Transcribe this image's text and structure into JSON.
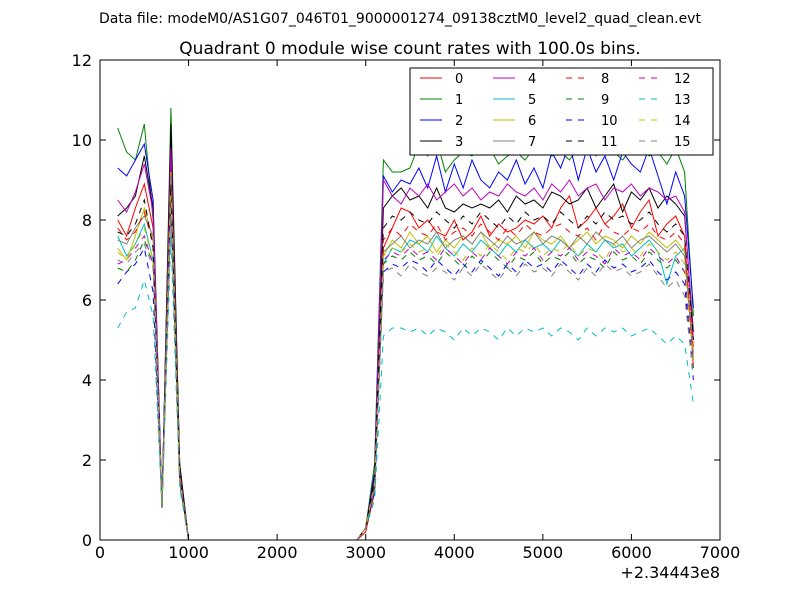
{
  "chart_data": {
    "type": "line",
    "suptitle": "Data file: modeM0/AS1G07_046T01_9000001274_09138cztM0_level2_quad_clean.evt",
    "title": "Quadrant 0 module wise count rates with 100.0s bins.",
    "xlabel": "",
    "ylabel": "",
    "x_offset_label": "+2.34443e8",
    "xlim": [
      0,
      7000
    ],
    "ylim": [
      0,
      12
    ],
    "xticks": [
      "0",
      "1000",
      "2000",
      "3000",
      "4000",
      "5000",
      "6000",
      "7000"
    ],
    "yticks": [
      "0",
      "2",
      "4",
      "6",
      "8",
      "10",
      "12"
    ],
    "grid": false,
    "legend": {
      "placement": "top-right",
      "columns": 4
    },
    "x": [
      200,
      300,
      400,
      500,
      600,
      700,
      800,
      900,
      1000,
      1100,
      1200,
      1300,
      1400,
      1500,
      1600,
      1700,
      1800,
      1900,
      2000,
      2100,
      2200,
      2300,
      2400,
      2500,
      2600,
      2700,
      2800,
      2900,
      3000,
      3100,
      3200,
      3300,
      3400,
      3500,
      3600,
      3700,
      3800,
      3900,
      4000,
      4100,
      4200,
      4300,
      4400,
      4500,
      4600,
      4700,
      4800,
      4900,
      5000,
      5100,
      5200,
      5300,
      5400,
      5500,
      5600,
      5700,
      5800,
      5900,
      6000,
      6100,
      6200,
      6300,
      6400,
      6500,
      6600,
      6700
    ],
    "series": [
      {
        "name": "0",
        "color": "#ff0000",
        "dash": false,
        "values": [
          8.0,
          7.6,
          8.3,
          8.9,
          7.8,
          0.8,
          9.5,
          1.5,
          0,
          0,
          0,
          0,
          0,
          0,
          0,
          0,
          0,
          0,
          0,
          0,
          0,
          0,
          0,
          0,
          0,
          0,
          0,
          0,
          0.2,
          1.2,
          7.3,
          7.8,
          8.3,
          8.2,
          7.8,
          8.0,
          7.7,
          7.6,
          8.0,
          7.5,
          7.7,
          8.1,
          7.6,
          7.9,
          7.7,
          7.8,
          8.0,
          7.9,
          8.1,
          7.8,
          8.3,
          8.6,
          7.8,
          8.0,
          8.3,
          7.9,
          8.1,
          8.4,
          7.8,
          8.2,
          8.5,
          7.6,
          7.9,
          8.1,
          7.6,
          4.3
        ]
      },
      {
        "name": "1",
        "color": "#008000",
        "dash": false,
        "values": [
          10.3,
          9.7,
          9.5,
          10.4,
          8.0,
          0.8,
          10.8,
          1.9,
          0,
          0,
          0,
          0,
          0,
          0,
          0,
          0,
          0,
          0,
          0,
          0,
          0,
          0,
          0,
          0,
          0,
          0,
          0,
          0,
          0.3,
          1.9,
          9.5,
          9.2,
          9.2,
          9.3,
          9.9,
          9.6,
          10.0,
          9.2,
          9.5,
          9.7,
          9.6,
          9.9,
          9.8,
          9.4,
          9.6,
          9.7,
          9.5,
          9.8,
          9.9,
          9.6,
          9.7,
          9.5,
          9.8,
          9.9,
          9.6,
          10.0,
          9.7,
          9.5,
          9.8,
          9.9,
          9.6,
          9.7,
          9.4,
          9.8,
          9.2,
          5.6
        ]
      },
      {
        "name": "2",
        "color": "#0000ff",
        "dash": false,
        "values": [
          9.3,
          9.1,
          9.5,
          9.9,
          8.5,
          0.9,
          10.2,
          1.8,
          0,
          0,
          0,
          0,
          0,
          0,
          0,
          0,
          0,
          0,
          0,
          0,
          0,
          0,
          0,
          0,
          0,
          0,
          0,
          0,
          0.3,
          1.7,
          9.1,
          8.7,
          9.0,
          8.9,
          9.3,
          8.8,
          9.6,
          8.7,
          9.4,
          8.8,
          9.5,
          9.0,
          8.8,
          9.2,
          9.0,
          9.5,
          8.9,
          9.3,
          8.8,
          9.7,
          9.3,
          9.9,
          9.0,
          9.8,
          9.2,
          9.6,
          9.0,
          9.7,
          9.4,
          9.2,
          9.8,
          9.1,
          8.4,
          9.2,
          8.6,
          5.8
        ]
      },
      {
        "name": "3",
        "color": "#000000",
        "dash": false,
        "values": [
          8.1,
          8.3,
          8.6,
          9.6,
          8.3,
          0.8,
          10.4,
          1.9,
          0,
          0,
          0,
          0,
          0,
          0,
          0,
          0,
          0,
          0,
          0,
          0,
          0,
          0,
          0,
          0,
          0,
          0,
          0,
          0,
          0.3,
          1.6,
          8.3,
          8.6,
          8.8,
          8.5,
          8.6,
          8.3,
          8.8,
          8.3,
          8.2,
          8.4,
          8.3,
          8.4,
          8.3,
          8.5,
          8.2,
          8.6,
          8.4,
          8.5,
          8.3,
          8.7,
          8.6,
          8.4,
          8.5,
          8.8,
          8.3,
          8.6,
          8.9,
          8.2,
          8.7,
          8.5,
          8.8,
          8.3,
          8.6,
          8.4,
          8.1,
          5.2
        ]
      },
      {
        "name": "4",
        "color": "#bf00bf",
        "dash": false,
        "values": [
          8.5,
          8.2,
          8.7,
          9.4,
          8.2,
          0.8,
          9.8,
          1.7,
          0,
          0,
          0,
          0,
          0,
          0,
          0,
          0,
          0,
          0,
          0,
          0,
          0,
          0,
          0,
          0,
          0,
          0,
          0,
          0,
          0.3,
          1.5,
          9.0,
          8.6,
          8.4,
          8.8,
          8.6,
          8.9,
          8.5,
          8.7,
          8.9,
          8.6,
          8.8,
          8.5,
          8.7,
          8.6,
          8.9,
          8.7,
          8.6,
          8.8,
          8.5,
          8.9,
          8.7,
          9.0,
          8.6,
          8.8,
          8.9,
          8.5,
          8.8,
          8.7,
          8.9,
          8.6,
          8.8,
          8.7,
          8.5,
          8.6,
          8.2,
          5.0
        ]
      },
      {
        "name": "5",
        "color": "#00bfbf",
        "dash": false,
        "values": [
          7.6,
          7.1,
          7.4,
          7.9,
          7.0,
          0.8,
          8.9,
          1.6,
          0,
          0,
          0,
          0,
          0,
          0,
          0,
          0,
          0,
          0,
          0,
          0,
          0,
          0,
          0,
          0,
          0,
          0,
          0,
          0,
          0.3,
          1.3,
          6.9,
          7.3,
          7.2,
          7.5,
          7.4,
          7.2,
          7.6,
          7.3,
          7.1,
          7.4,
          7.2,
          7.5,
          7.3,
          7.1,
          7.4,
          7.2,
          7.5,
          7.3,
          7.4,
          7.2,
          7.5,
          7.3,
          7.1,
          7.4,
          7.2,
          7.5,
          7.3,
          7.4,
          7.1,
          7.3,
          7.5,
          7.2,
          6.4,
          7.1,
          7.3,
          4.5
        ]
      },
      {
        "name": "6",
        "color": "#bfbf00",
        "dash": false,
        "values": [
          7.3,
          7.0,
          7.6,
          8.3,
          7.5,
          0.8,
          9.2,
          1.6,
          0,
          0,
          0,
          0,
          0,
          0,
          0,
          0,
          0,
          0,
          0,
          0,
          0,
          0,
          0,
          0,
          0,
          0,
          0,
          0,
          0.3,
          1.4,
          7.1,
          7.5,
          7.3,
          7.7,
          7.4,
          7.6,
          7.2,
          7.5,
          7.3,
          7.6,
          7.4,
          7.7,
          7.3,
          7.5,
          7.4,
          7.6,
          7.3,
          7.7,
          7.5,
          7.4,
          7.6,
          7.3,
          7.5,
          7.7,
          7.4,
          7.6,
          7.5,
          7.3,
          7.6,
          7.4,
          7.7,
          7.5,
          7.3,
          7.5,
          7.2,
          4.7
        ]
      },
      {
        "name": "7",
        "color": "#808080",
        "dash": false,
        "values": [
          7.5,
          7.4,
          7.8,
          8.1,
          7.6,
          0.8,
          9.1,
          1.6,
          0,
          0,
          0,
          0,
          0,
          0,
          0,
          0,
          0,
          0,
          0,
          0,
          0,
          0,
          0,
          0,
          0,
          0,
          0,
          0,
          0.3,
          1.4,
          7.2,
          7.4,
          7.6,
          7.3,
          7.5,
          7.4,
          7.7,
          7.3,
          7.5,
          7.6,
          7.4,
          7.7,
          7.5,
          7.3,
          7.6,
          7.4,
          7.5,
          7.7,
          7.4,
          7.6,
          7.5,
          7.3,
          7.6,
          7.4,
          7.7,
          7.5,
          7.4,
          7.6,
          7.3,
          7.5,
          7.6,
          7.4,
          7.2,
          7.4,
          7.1,
          4.6
        ]
      },
      {
        "name": "8",
        "color": "#ff0000",
        "dash": true,
        "values": [
          7.8,
          7.5,
          7.7,
          8.2,
          7.4,
          0.8,
          8.8,
          1.6,
          0,
          0,
          0,
          0,
          0,
          0,
          0,
          0,
          0,
          0,
          0,
          0,
          0,
          0,
          0,
          0,
          0,
          0,
          0,
          0,
          0.3,
          1.4,
          7.5,
          7.8,
          7.6,
          7.9,
          7.7,
          7.6,
          7.9,
          7.5,
          7.7,
          7.8,
          7.6,
          7.9,
          7.7,
          7.5,
          7.8,
          7.6,
          7.9,
          7.7,
          7.6,
          7.8,
          7.9,
          7.7,
          7.6,
          7.8,
          7.5,
          7.9,
          7.7,
          7.6,
          7.8,
          7.7,
          7.9,
          7.6,
          7.5,
          7.7,
          7.4,
          4.8
        ]
      },
      {
        "name": "9",
        "color": "#008000",
        "dash": true,
        "values": [
          6.8,
          6.7,
          7.0,
          7.5,
          6.9,
          0.8,
          8.4,
          1.5,
          0,
          0,
          0,
          0,
          0,
          0,
          0,
          0,
          0,
          0,
          0,
          0,
          0,
          0,
          0,
          0,
          0,
          0,
          0,
          0,
          0.3,
          1.3,
          6.9,
          7.1,
          7.0,
          7.2,
          7.0,
          7.1,
          6.9,
          7.2,
          7.0,
          6.8,
          7.1,
          6.9,
          7.2,
          7.0,
          6.8,
          7.1,
          7.0,
          7.2,
          6.9,
          7.1,
          7.0,
          7.2,
          6.9,
          7.1,
          7.0,
          6.8,
          7.2,
          7.0,
          7.1,
          6.9,
          7.2,
          7.0,
          6.8,
          7.0,
          6.7,
          4.3
        ]
      },
      {
        "name": "10",
        "color": "#0000ff",
        "dash": true,
        "values": [
          6.4,
          6.7,
          6.9,
          7.3,
          6.2,
          0.8,
          8.3,
          1.4,
          0,
          0,
          0,
          0,
          0,
          0,
          0,
          0,
          0,
          0,
          0,
          0,
          0,
          0,
          0,
          0,
          0,
          0,
          0,
          0,
          0.3,
          1.2,
          6.7,
          6.9,
          6.8,
          7.0,
          6.9,
          6.7,
          7.0,
          6.8,
          6.6,
          6.9,
          6.7,
          7.0,
          6.8,
          6.6,
          6.9,
          6.7,
          7.0,
          6.8,
          6.9,
          6.7,
          7.0,
          6.8,
          6.6,
          6.9,
          6.7,
          7.0,
          6.8,
          6.9,
          6.7,
          6.8,
          7.0,
          6.7,
          6.5,
          6.7,
          6.4,
          4.0
        ]
      },
      {
        "name": "11",
        "color": "#000000",
        "dash": true,
        "values": [
          7.7,
          7.6,
          7.9,
          8.5,
          7.3,
          0.8,
          8.9,
          1.6,
          0,
          0,
          0,
          0,
          0,
          0,
          0,
          0,
          0,
          0,
          0,
          0,
          0,
          0,
          0,
          0,
          0,
          0,
          0,
          0,
          0.3,
          1.5,
          7.8,
          8.1,
          8.0,
          8.2,
          8.0,
          7.9,
          8.2,
          8.0,
          7.8,
          8.1,
          7.9,
          8.2,
          8.0,
          7.8,
          8.1,
          7.9,
          8.2,
          8.0,
          8.1,
          7.9,
          8.2,
          8.0,
          7.8,
          8.1,
          7.9,
          8.2,
          8.0,
          8.1,
          7.9,
          8.0,
          8.2,
          7.9,
          7.7,
          7.9,
          7.6,
          5.0
        ]
      },
      {
        "name": "12",
        "color": "#bf00bf",
        "dash": true,
        "values": [
          6.9,
          7.0,
          7.3,
          7.6,
          6.9,
          0.8,
          8.5,
          1.5,
          0,
          0,
          0,
          0,
          0,
          0,
          0,
          0,
          0,
          0,
          0,
          0,
          0,
          0,
          0,
          0,
          0,
          0,
          0,
          0,
          0.3,
          1.3,
          7.0,
          7.2,
          7.1,
          7.3,
          7.1,
          7.2,
          7.0,
          7.3,
          7.1,
          6.9,
          7.2,
          7.0,
          7.3,
          7.1,
          6.9,
          7.2,
          7.1,
          7.3,
          7.0,
          7.2,
          7.1,
          7.3,
          7.0,
          7.2,
          7.1,
          6.9,
          7.3,
          7.1,
          7.2,
          7.0,
          7.3,
          7.1,
          6.9,
          7.1,
          6.7,
          4.4
        ]
      },
      {
        "name": "13",
        "color": "#00bfbf",
        "dash": true,
        "values": [
          5.3,
          5.7,
          5.8,
          6.5,
          5.6,
          0.8,
          7.6,
          1.3,
          0,
          0,
          0,
          0,
          0,
          0,
          0,
          0,
          0,
          0,
          0,
          0,
          0,
          0,
          0,
          0,
          0,
          0,
          0,
          0,
          0.3,
          1.0,
          5.1,
          5.3,
          5.3,
          5.2,
          5.3,
          5.1,
          5.3,
          5.2,
          5.0,
          5.3,
          5.1,
          5.3,
          5.2,
          5.0,
          5.3,
          5.1,
          5.3,
          5.2,
          5.3,
          5.1,
          5.3,
          5.2,
          5.0,
          5.3,
          5.1,
          5.3,
          5.2,
          5.3,
          5.1,
          5.2,
          5.3,
          5.1,
          4.9,
          5.1,
          4.9,
          3.4
        ]
      },
      {
        "name": "14",
        "color": "#bfbf00",
        "dash": true,
        "values": [
          7.2,
          7.0,
          7.4,
          7.8,
          7.0,
          0.8,
          8.6,
          1.5,
          0,
          0,
          0,
          0,
          0,
          0,
          0,
          0,
          0,
          0,
          0,
          0,
          0,
          0,
          0,
          0,
          0,
          0,
          0,
          0,
          0.3,
          1.4,
          7.1,
          7.3,
          7.2,
          7.4,
          7.2,
          7.3,
          7.1,
          7.4,
          7.2,
          7.0,
          7.3,
          7.1,
          7.4,
          7.2,
          7.0,
          7.3,
          7.2,
          7.4,
          7.1,
          7.3,
          7.2,
          7.4,
          7.1,
          7.3,
          7.2,
          7.0,
          7.4,
          7.2,
          7.3,
          7.1,
          7.4,
          7.2,
          7.0,
          7.2,
          6.9,
          4.5
        ]
      },
      {
        "name": "15",
        "color": "#808080",
        "dash": true,
        "values": [
          7.0,
          6.9,
          7.2,
          7.4,
          6.8,
          0.8,
          8.3,
          1.5,
          0,
          0,
          0,
          0,
          0,
          0,
          0,
          0,
          0,
          0,
          0,
          0,
          0,
          0,
          0,
          0,
          0,
          0,
          0,
          0,
          0.3,
          1.3,
          6.7,
          6.8,
          6.6,
          6.9,
          6.7,
          6.6,
          6.8,
          6.7,
          6.5,
          6.8,
          6.6,
          6.9,
          6.7,
          6.5,
          6.8,
          6.6,
          6.9,
          6.7,
          6.8,
          6.6,
          6.9,
          6.7,
          6.5,
          6.8,
          6.6,
          6.9,
          6.7,
          6.8,
          6.6,
          6.7,
          6.9,
          6.6,
          6.3,
          6.5,
          6.1,
          4.1
        ]
      }
    ]
  }
}
